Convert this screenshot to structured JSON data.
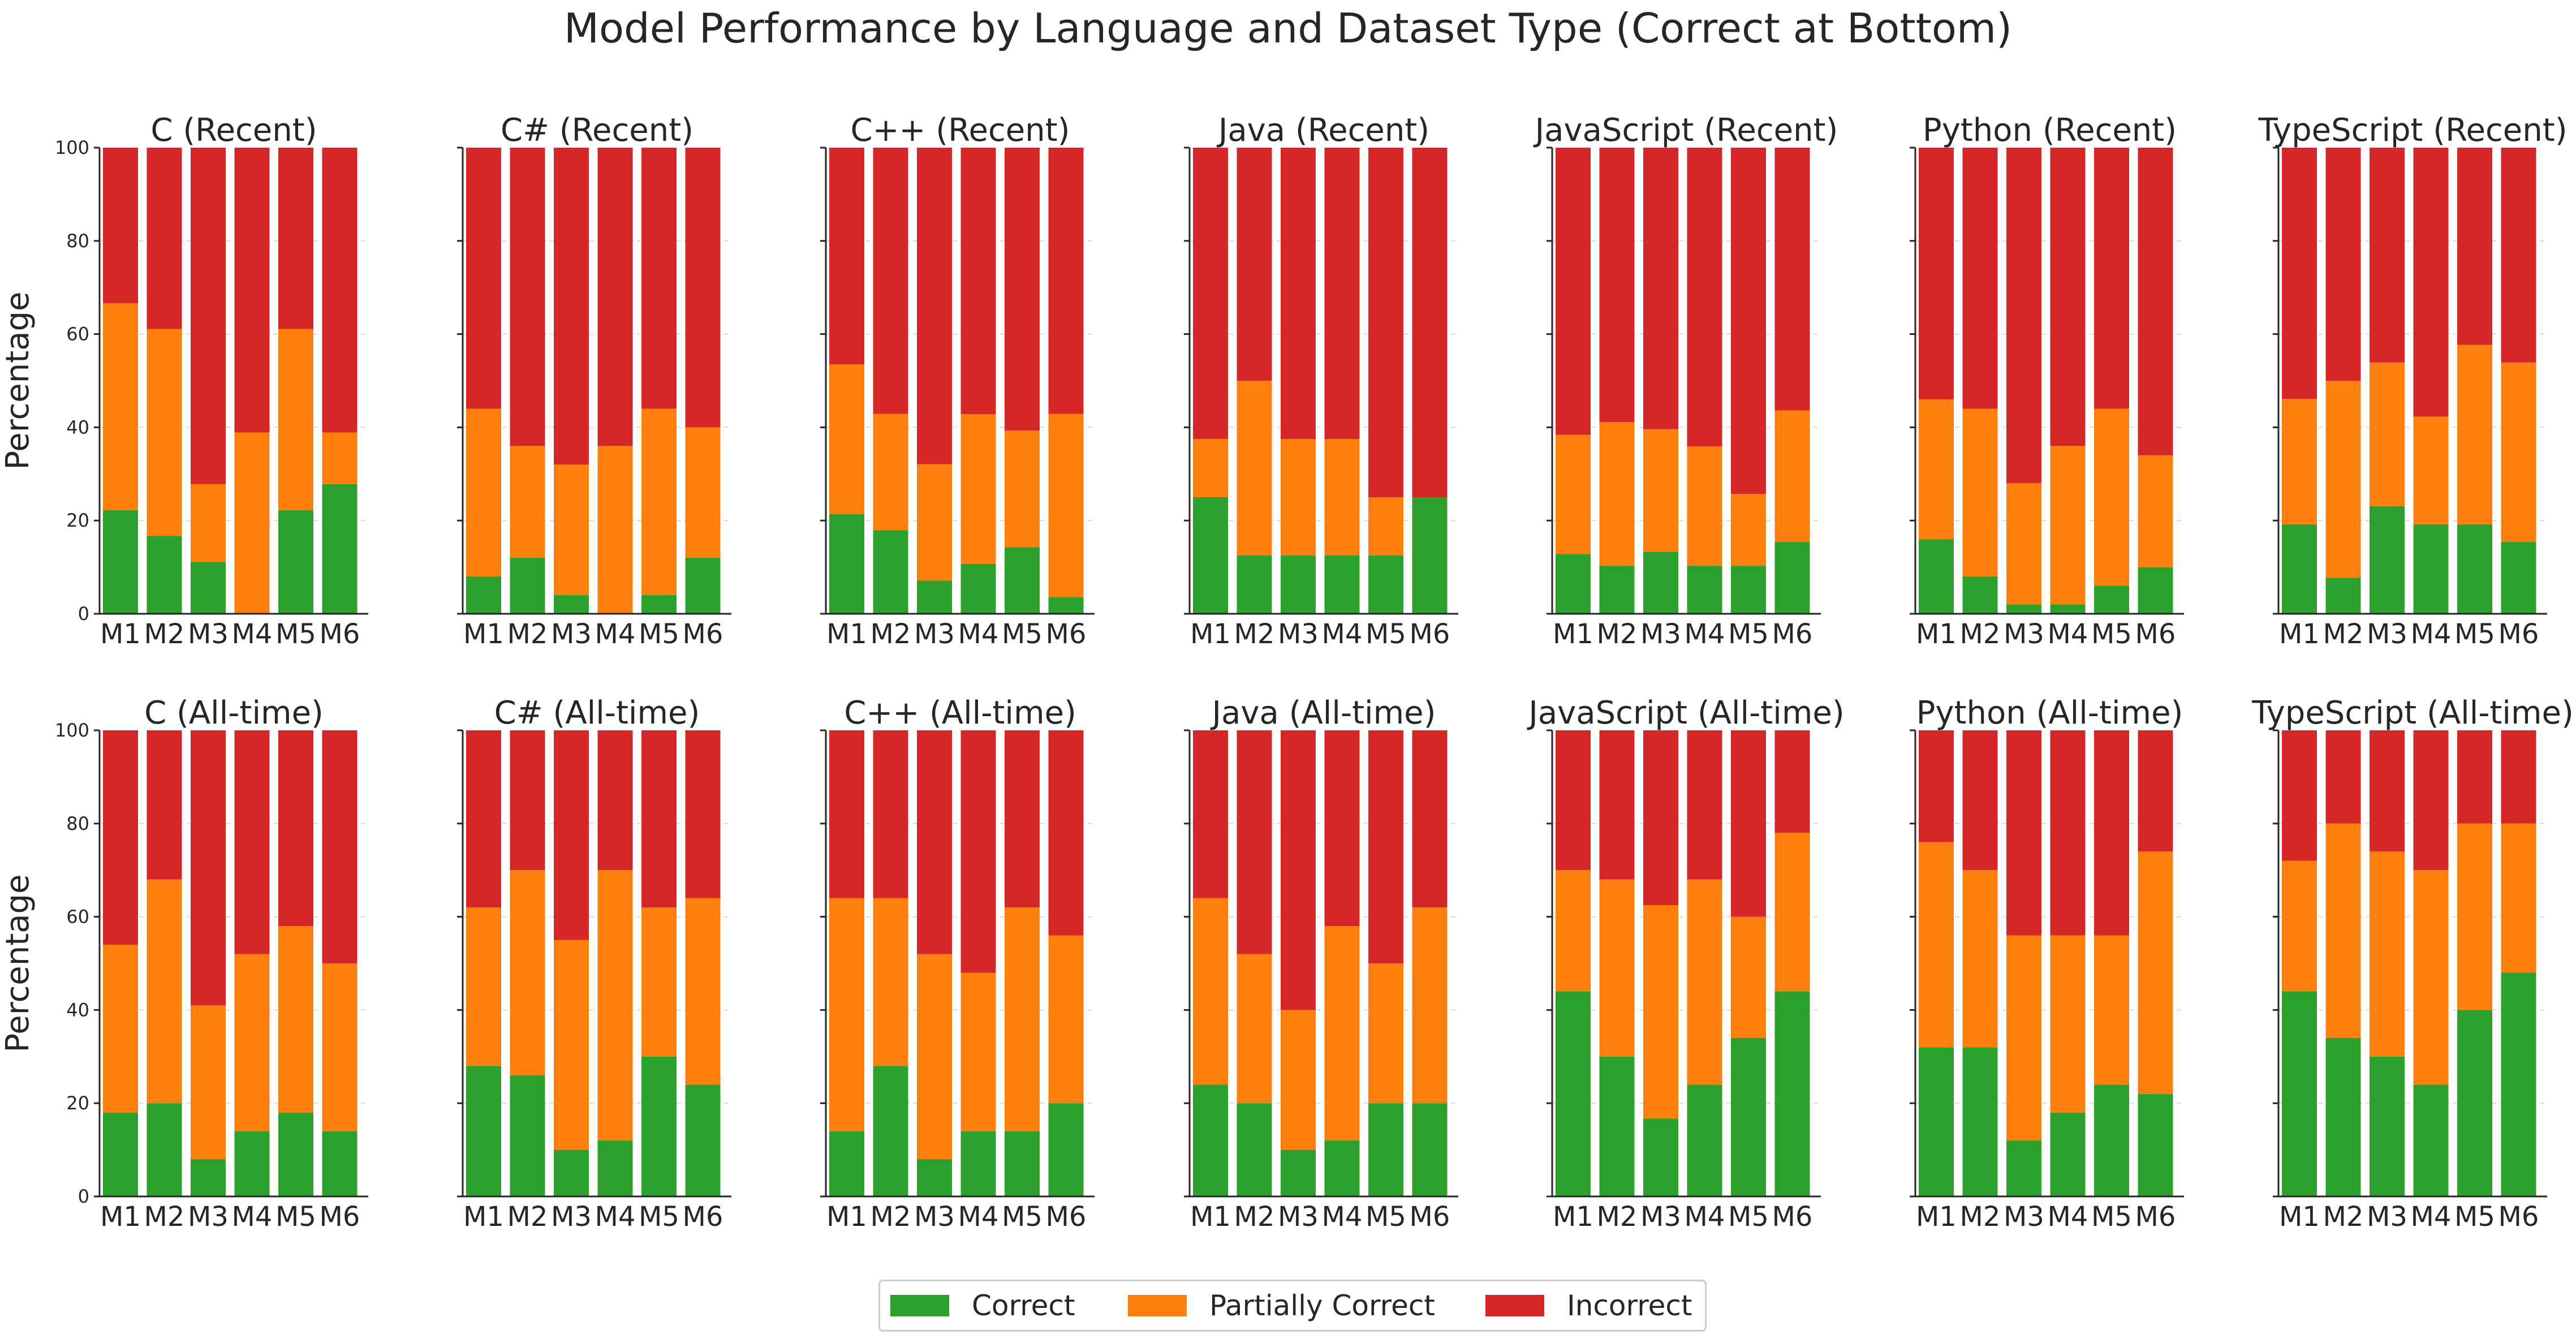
{
  "title": "Model Performance by Language and Dataset Type (Correct at Bottom)",
  "legend": [
    {
      "key": "correct",
      "label": "Correct",
      "color": "#2ca02c"
    },
    {
      "key": "partial",
      "label": "Partially Correct",
      "color": "#ff7f0e"
    },
    {
      "key": "incorrect",
      "label": "Incorrect",
      "color": "#d62728"
    }
  ],
  "y_axis_label": "Percentage",
  "y_ticks": [
    "0",
    "20",
    "40",
    "60",
    "80",
    "100"
  ],
  "chart_data": [
    {
      "type": "bar",
      "stacked": true,
      "title": "C (Recent)",
      "categories": [
        "M1",
        "M2",
        "M3",
        "M4",
        "M5",
        "M6"
      ],
      "ylim": [
        0,
        100
      ],
      "ylabel": "Percentage",
      "series": [
        {
          "name": "Correct",
          "values": [
            22.2,
            16.7,
            11.1,
            0,
            22.2,
            27.8
          ]
        },
        {
          "name": "Partially Correct",
          "values": [
            44.4,
            44.4,
            16.7,
            38.9,
            38.9,
            11.1
          ]
        },
        {
          "name": "Incorrect",
          "values": [
            33.4,
            38.9,
            72.2,
            61.1,
            38.9,
            61.1
          ]
        }
      ]
    },
    {
      "type": "bar",
      "stacked": true,
      "title": "C# (Recent)",
      "categories": [
        "M1",
        "M2",
        "M3",
        "M4",
        "M5",
        "M6"
      ],
      "ylim": [
        0,
        100
      ],
      "ylabel": "",
      "series": [
        {
          "name": "Correct",
          "values": [
            8,
            12,
            4,
            0,
            4,
            12
          ]
        },
        {
          "name": "Partially Correct",
          "values": [
            36,
            24,
            28,
            36,
            40,
            28
          ]
        },
        {
          "name": "Incorrect",
          "values": [
            56,
            64,
            68,
            64,
            56,
            60
          ]
        }
      ]
    },
    {
      "type": "bar",
      "stacked": true,
      "title": "C++ (Recent)",
      "categories": [
        "M1",
        "M2",
        "M3",
        "M4",
        "M5",
        "M6"
      ],
      "ylim": [
        0,
        100
      ],
      "ylabel": "",
      "series": [
        {
          "name": "Correct",
          "values": [
            21.4,
            17.9,
            7.1,
            10.7,
            14.3,
            3.6
          ]
        },
        {
          "name": "Partially Correct",
          "values": [
            32.1,
            25,
            25,
            32.1,
            25,
            39.3
          ]
        },
        {
          "name": "Incorrect",
          "values": [
            46.5,
            57.1,
            67.9,
            57.2,
            60.7,
            57.1
          ]
        }
      ]
    },
    {
      "type": "bar",
      "stacked": true,
      "title": "Java (Recent)",
      "categories": [
        "M1",
        "M2",
        "M3",
        "M4",
        "M5",
        "M6"
      ],
      "ylim": [
        0,
        100
      ],
      "ylabel": "",
      "series": [
        {
          "name": "Correct",
          "values": [
            25,
            12.5,
            12.5,
            12.5,
            12.5,
            25
          ]
        },
        {
          "name": "Partially Correct",
          "values": [
            12.5,
            37.5,
            25,
            25,
            12.5,
            0
          ]
        },
        {
          "name": "Incorrect",
          "values": [
            62.5,
            50,
            62.5,
            62.5,
            75,
            75
          ]
        }
      ]
    },
    {
      "type": "bar",
      "stacked": true,
      "title": "JavaScript (Recent)",
      "categories": [
        "M1",
        "M2",
        "M3",
        "M4",
        "M5",
        "M6"
      ],
      "ylim": [
        0,
        100
      ],
      "ylabel": "",
      "series": [
        {
          "name": "Correct",
          "values": [
            12.8,
            10.3,
            13.3,
            10.3,
            10.3,
            15.4
          ]
        },
        {
          "name": "Partially Correct",
          "values": [
            25.6,
            30.8,
            26.3,
            25.6,
            15.4,
            28.2
          ]
        },
        {
          "name": "Incorrect",
          "values": [
            61.6,
            58.9,
            60.4,
            64.1,
            74.3,
            56.4
          ]
        }
      ]
    },
    {
      "type": "bar",
      "stacked": true,
      "title": "Python (Recent)",
      "categories": [
        "M1",
        "M2",
        "M3",
        "M4",
        "M5",
        "M6"
      ],
      "ylim": [
        0,
        100
      ],
      "ylabel": "",
      "series": [
        {
          "name": "Correct",
          "values": [
            16,
            8,
            2,
            2,
            6,
            10
          ]
        },
        {
          "name": "Partially Correct",
          "values": [
            30,
            36,
            26,
            34,
            38,
            24
          ]
        },
        {
          "name": "Incorrect",
          "values": [
            54,
            56,
            72,
            64,
            56,
            66
          ]
        }
      ]
    },
    {
      "type": "bar",
      "stacked": true,
      "title": "TypeScript (Recent)",
      "categories": [
        "M1",
        "M2",
        "M3",
        "M4",
        "M5",
        "M6"
      ],
      "ylim": [
        0,
        100
      ],
      "ylabel": "",
      "series": [
        {
          "name": "Correct",
          "values": [
            19.2,
            7.7,
            23.1,
            19.2,
            19.2,
            15.4
          ]
        },
        {
          "name": "Partially Correct",
          "values": [
            26.9,
            42.3,
            30.8,
            23.1,
            38.5,
            38.5
          ]
        },
        {
          "name": "Incorrect",
          "values": [
            53.9,
            50,
            46.1,
            57.7,
            42.3,
            46.1
          ]
        }
      ]
    },
    {
      "type": "bar",
      "stacked": true,
      "title": "C (All-time)",
      "categories": [
        "M1",
        "M2",
        "M3",
        "M4",
        "M5",
        "M6"
      ],
      "ylim": [
        0,
        100
      ],
      "ylabel": "Percentage",
      "series": [
        {
          "name": "Correct",
          "values": [
            18,
            20,
            8,
            14,
            18,
            14
          ]
        },
        {
          "name": "Partially Correct",
          "values": [
            36,
            48,
            33,
            38,
            40,
            36
          ]
        },
        {
          "name": "Incorrect",
          "values": [
            46,
            32,
            59,
            48,
            42,
            50
          ]
        }
      ]
    },
    {
      "type": "bar",
      "stacked": true,
      "title": "C# (All-time)",
      "categories": [
        "M1",
        "M2",
        "M3",
        "M4",
        "M5",
        "M6"
      ],
      "ylim": [
        0,
        100
      ],
      "ylabel": "",
      "series": [
        {
          "name": "Correct",
          "values": [
            28,
            26,
            10,
            12,
            30,
            24
          ]
        },
        {
          "name": "Partially Correct",
          "values": [
            34,
            44,
            45,
            58,
            32,
            40
          ]
        },
        {
          "name": "Incorrect",
          "values": [
            38,
            30,
            45,
            30,
            38,
            36
          ]
        }
      ]
    },
    {
      "type": "bar",
      "stacked": true,
      "title": "C++ (All-time)",
      "categories": [
        "M1",
        "M2",
        "M3",
        "M4",
        "M5",
        "M6"
      ],
      "ylim": [
        0,
        100
      ],
      "ylabel": "",
      "series": [
        {
          "name": "Correct",
          "values": [
            14,
            28,
            8,
            14,
            14,
            20
          ]
        },
        {
          "name": "Partially Correct",
          "values": [
            50,
            36,
            44,
            34,
            48,
            36
          ]
        },
        {
          "name": "Incorrect",
          "values": [
            36,
            36,
            48,
            52,
            38,
            44
          ]
        }
      ]
    },
    {
      "type": "bar",
      "stacked": true,
      "title": "Java (All-time)",
      "categories": [
        "M1",
        "M2",
        "M3",
        "M4",
        "M5",
        "M6"
      ],
      "ylim": [
        0,
        100
      ],
      "ylabel": "",
      "series": [
        {
          "name": "Correct",
          "values": [
            24,
            20,
            10,
            12,
            20,
            20
          ]
        },
        {
          "name": "Partially Correct",
          "values": [
            40,
            32,
            30,
            46,
            30,
            42
          ]
        },
        {
          "name": "Incorrect",
          "values": [
            36,
            48,
            60,
            42,
            50,
            38
          ]
        }
      ]
    },
    {
      "type": "bar",
      "stacked": true,
      "title": "JavaScript (All-time)",
      "categories": [
        "M1",
        "M2",
        "M3",
        "M4",
        "M5",
        "M6"
      ],
      "ylim": [
        0,
        100
      ],
      "ylabel": "",
      "series": [
        {
          "name": "Correct",
          "values": [
            44,
            30,
            16.7,
            24,
            34,
            44
          ]
        },
        {
          "name": "Partially Correct",
          "values": [
            26,
            38,
            45.8,
            44,
            26,
            34
          ]
        },
        {
          "name": "Incorrect",
          "values": [
            30,
            32,
            37.5,
            32,
            40,
            22
          ]
        }
      ]
    },
    {
      "type": "bar",
      "stacked": true,
      "title": "Python (All-time)",
      "categories": [
        "M1",
        "M2",
        "M3",
        "M4",
        "M5",
        "M6"
      ],
      "ylim": [
        0,
        100
      ],
      "ylabel": "",
      "series": [
        {
          "name": "Correct",
          "values": [
            32,
            32,
            12,
            18,
            24,
            22
          ]
        },
        {
          "name": "Partially Correct",
          "values": [
            44,
            38,
            44,
            38,
            32,
            52
          ]
        },
        {
          "name": "Incorrect",
          "values": [
            24,
            30,
            44,
            44,
            44,
            26
          ]
        }
      ]
    },
    {
      "type": "bar",
      "stacked": true,
      "title": "TypeScript (All-time)",
      "categories": [
        "M1",
        "M2",
        "M3",
        "M4",
        "M5",
        "M6"
      ],
      "ylim": [
        0,
        100
      ],
      "ylabel": "",
      "series": [
        {
          "name": "Correct",
          "values": [
            44,
            34,
            30,
            24,
            40,
            48
          ]
        },
        {
          "name": "Partially Correct",
          "values": [
            28,
            46,
            44,
            46,
            40,
            32
          ]
        },
        {
          "name": "Incorrect",
          "values": [
            28,
            20,
            26,
            30,
            20,
            20
          ]
        }
      ]
    }
  ]
}
